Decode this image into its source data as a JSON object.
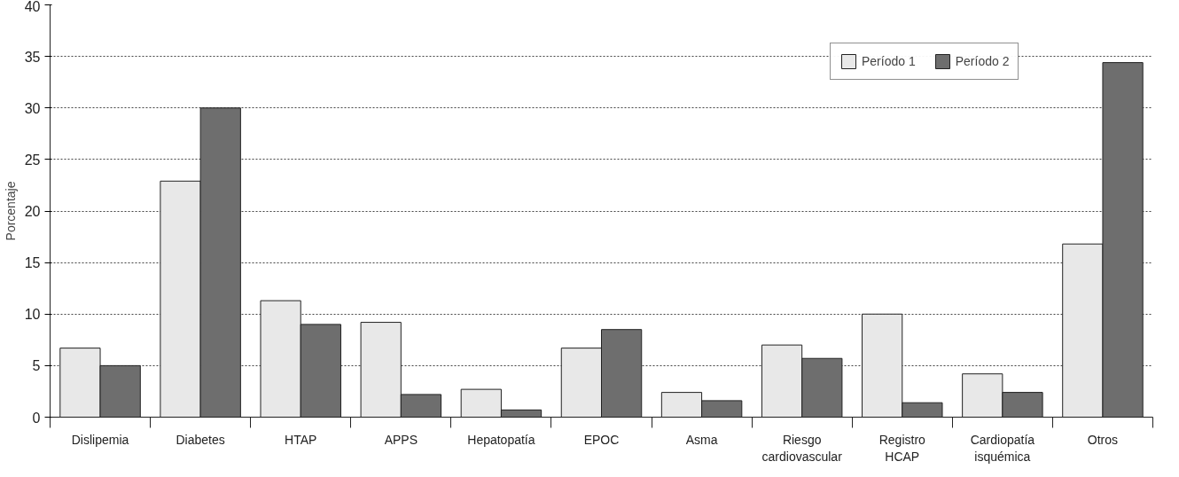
{
  "chart_data": {
    "type": "bar",
    "ylabel": "Porcentaje",
    "categories": [
      "Dislipemia",
      "Diabetes",
      "HTAP",
      "APPS",
      "Hepatopatía",
      "EPOC",
      "Asma",
      "Riesgo\ncardiovascular",
      "Registro\nHCAP",
      "Cardiopatía\nisquémica",
      "Otros"
    ],
    "series": [
      {
        "name": "Período 1",
        "color": "#e8e8e8",
        "values": [
          6.7,
          22.9,
          11.3,
          9.2,
          2.7,
          6.7,
          2.4,
          7.0,
          10.0,
          4.2,
          16.8
        ]
      },
      {
        "name": "Período 2",
        "color": "#6e6e6e",
        "values": [
          5.0,
          30.0,
          9.0,
          2.2,
          0.7,
          8.5,
          1.6,
          5.7,
          1.4,
          2.4,
          34.4
        ]
      }
    ],
    "ylim": [
      0,
      40
    ],
    "yticks": [
      0,
      5,
      10,
      15,
      20,
      25,
      30,
      35,
      40
    ],
    "grid": "y",
    "legend": "top right"
  }
}
